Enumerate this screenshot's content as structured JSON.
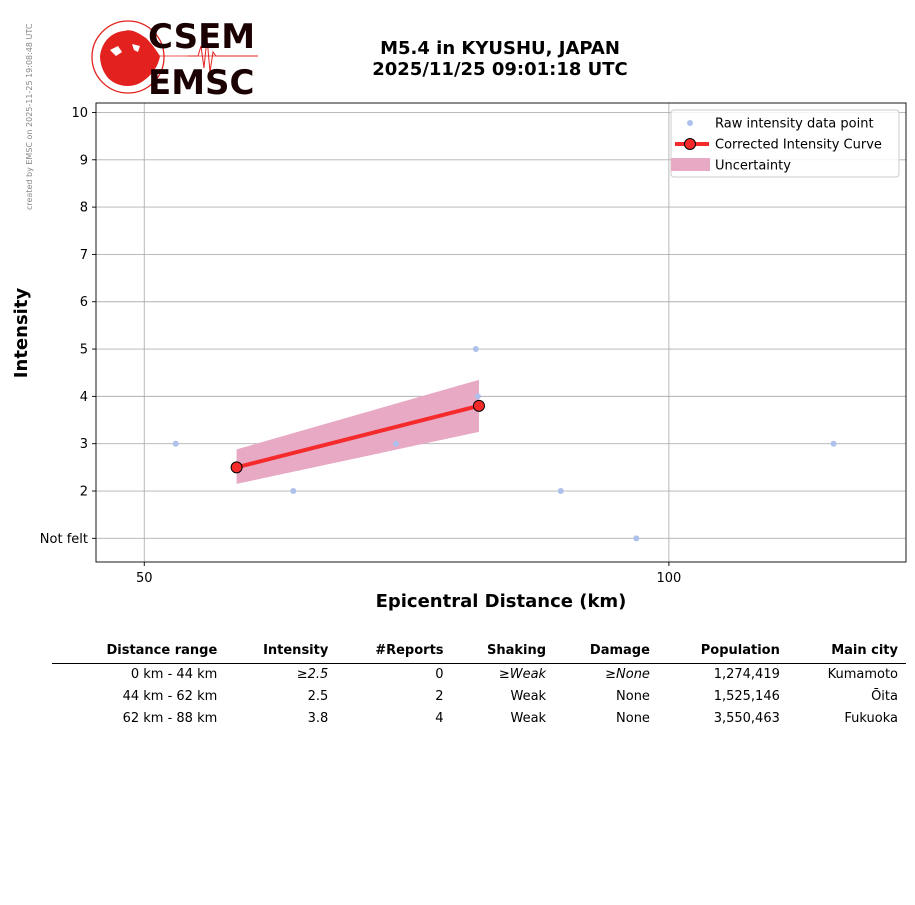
{
  "watermark": "created by EMSC on 2025-11-25 19:08:48 UTC",
  "logo": {
    "top": "CSEM",
    "bottom": "EMSC",
    "red": "#e3221f",
    "dark": "#1a0000"
  },
  "title": {
    "line1": "M5.4 in KYUSHU, JAPAN",
    "line2": "2025/11/25 09:01:18 UTC"
  },
  "chart_data": {
    "type": "scatter",
    "xlabel": "Epicentral Distance (km)",
    "ylabel": "Intensity",
    "xlim": [
      45.4,
      122.6
    ],
    "ylim": [
      0.5,
      10.2
    ],
    "x_ticks": [
      {
        "value": 50,
        "label": "50"
      },
      {
        "value": 100,
        "label": "100"
      }
    ],
    "y_ticks": [
      {
        "value": 1,
        "label": "Not felt"
      },
      {
        "value": 2,
        "label": "2"
      },
      {
        "value": 3,
        "label": "3"
      },
      {
        "value": 4,
        "label": "4"
      },
      {
        "value": 5,
        "label": "5"
      },
      {
        "value": 6,
        "label": "6"
      },
      {
        "value": 7,
        "label": "7"
      },
      {
        "value": 8,
        "label": "8"
      },
      {
        "value": 9,
        "label": "9"
      },
      {
        "value": 10,
        "label": "10"
      }
    ],
    "grid": true,
    "legend_position": "top-right",
    "series": [
      {
        "name": "Raw intensity data point",
        "kind": "points",
        "color": "#aec1ec",
        "points": [
          [
            53.0,
            3
          ],
          [
            64.2,
            2
          ],
          [
            74.0,
            3
          ],
          [
            81.6,
            5
          ],
          [
            81.8,
            4
          ],
          [
            89.7,
            2
          ],
          [
            96.9,
            1
          ],
          [
            115.7,
            3
          ]
        ]
      },
      {
        "name": "Corrected Intensity Curve",
        "kind": "line",
        "color": "#f52a2a",
        "points": [
          [
            58.8,
            2.5
          ],
          [
            81.9,
            3.8
          ]
        ]
      },
      {
        "name": "Uncertainty",
        "kind": "band",
        "color": "#e8a9c5",
        "x": [
          58.8,
          81.9
        ],
        "lower": [
          2.15,
          3.25
        ],
        "upper": [
          2.88,
          4.35
        ]
      }
    ]
  },
  "table": {
    "headers": [
      "Distance range",
      "Intensity",
      "#Reports",
      "Shaking",
      "Damage",
      "Population",
      "Main city"
    ],
    "rows": [
      [
        "0 km -   44 km",
        "≥2.5",
        "0",
        "≥Weak",
        "≥None",
        "1,274,419",
        "Kumamoto"
      ],
      [
        "44 km -   62 km",
        "2.5",
        "2",
        "Weak",
        "None",
        "1,525,146",
        "Ōita"
      ],
      [
        "62 km -   88 km",
        "3.8",
        "4",
        "Weak",
        "None",
        "3,550,463",
        "Fukuoka"
      ]
    ],
    "italic_first_row": true
  }
}
